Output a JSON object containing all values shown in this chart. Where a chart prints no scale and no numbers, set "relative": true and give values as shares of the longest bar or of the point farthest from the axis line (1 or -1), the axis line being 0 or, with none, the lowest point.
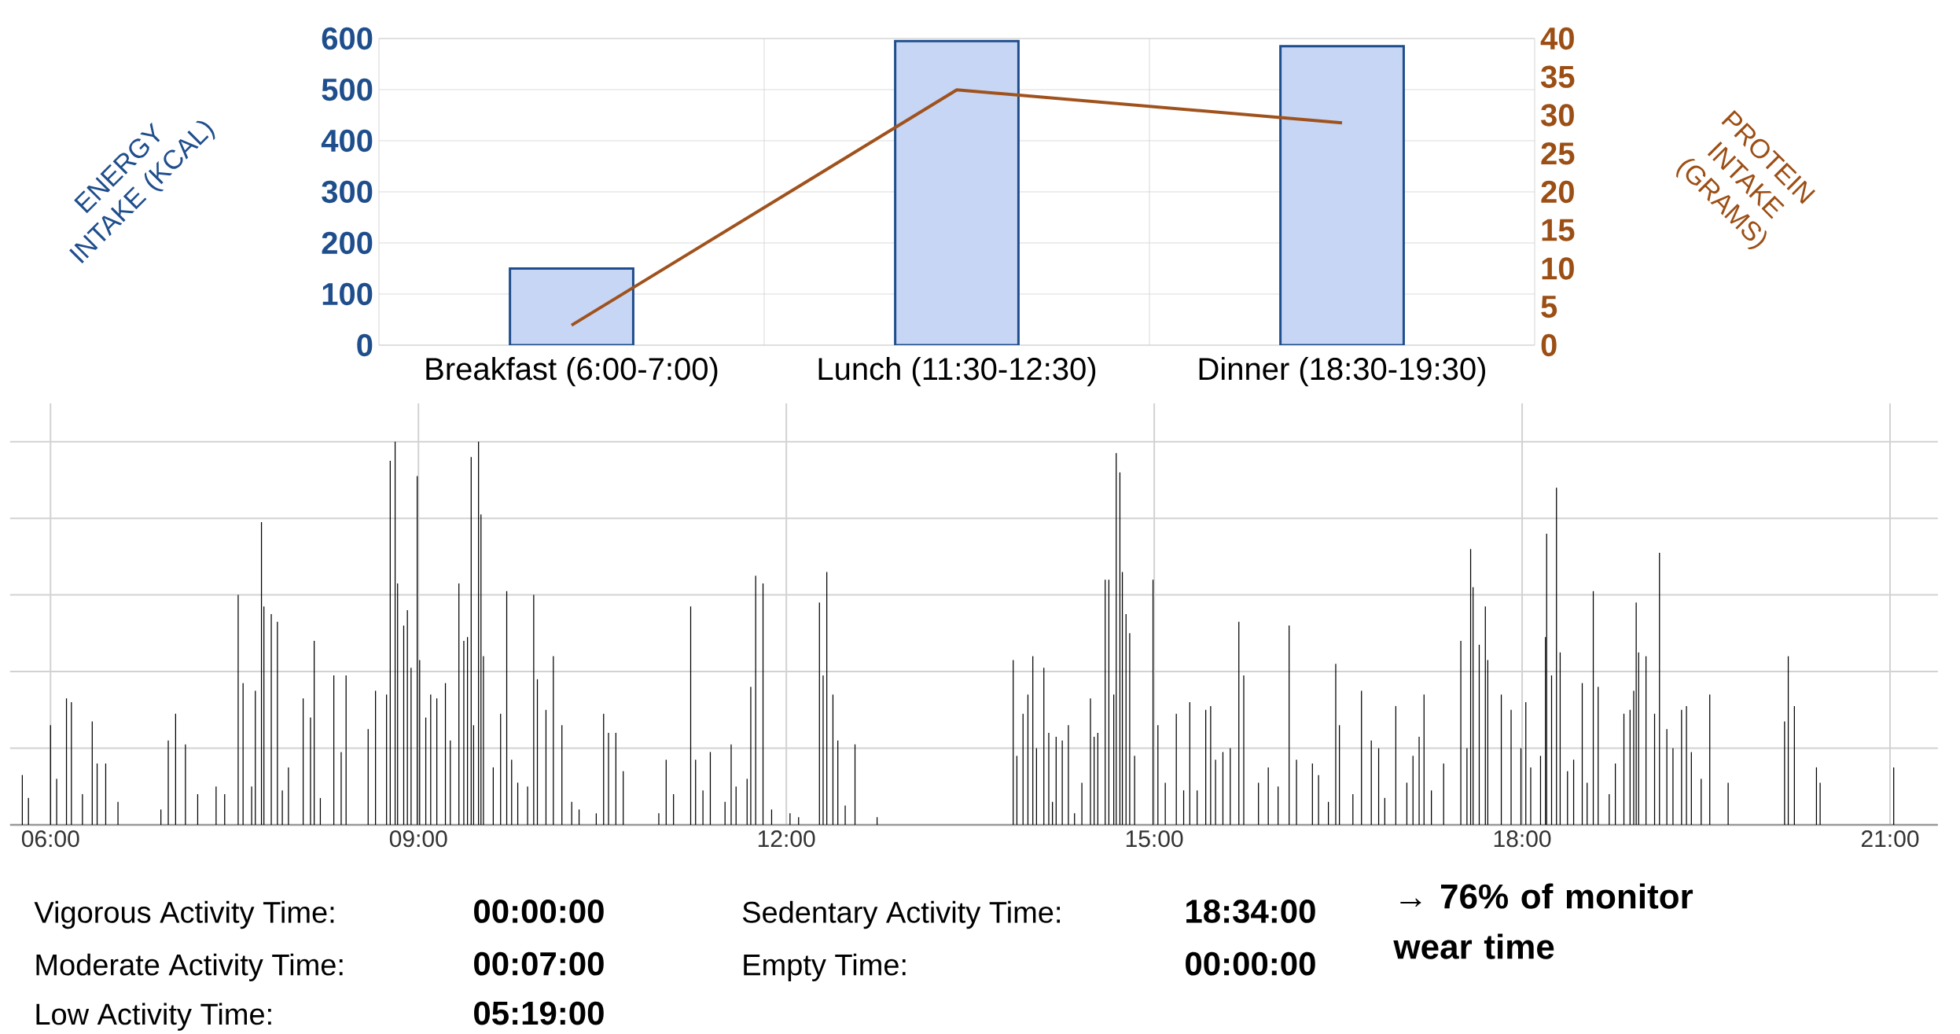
{
  "chart_data": [
    {
      "type": "bar",
      "categories": [
        "Breakfast (6:00-7:00)",
        "Lunch (11:30-12:30)",
        "Dinner (18:30-19:30)"
      ],
      "series": [
        {
          "color": "#c6d6f4",
          "values": [
            150,
            595,
            585
          ]
        },
        {
          "type": "line",
          "axis": "y2",
          "color": "#a0521d",
          "values": [
            2.6,
            33.3,
            29
          ]
        }
      ],
      "ylabel": "ENERGY INTAKE (KCAL)",
      "y2label": "PROTEIN INTAKE (GRAMS)",
      "ylim": [
        0,
        600
      ],
      "yticks": [
        0,
        100,
        200,
        300,
        400,
        500,
        600
      ],
      "y2lim": [
        0,
        40
      ],
      "y2ticks": [
        0,
        5,
        10,
        15,
        20,
        25,
        30,
        35,
        40
      ],
      "grid": true
    },
    {
      "type": "bar",
      "relative": true,
      "color": "#000000",
      "grid": true,
      "xlim": [
        5.67,
        21.39
      ],
      "xticks": [
        {
          "value": 6,
          "label": "06:00"
        },
        {
          "value": 9,
          "label": "09:00"
        },
        {
          "value": 12,
          "label": "12:00"
        },
        {
          "value": 15,
          "label": "15:00"
        },
        {
          "value": 18,
          "label": "18:00"
        },
        {
          "value": 21,
          "label": "21:00"
        }
      ],
      "x": [
        5.77,
        5.82,
        6.0,
        6.05,
        6.13,
        6.17,
        6.26,
        6.34,
        6.38,
        6.45,
        6.55,
        6.9,
        6.96,
        7.02,
        7.1,
        7.2,
        7.35,
        7.42,
        7.53,
        7.57,
        7.64,
        7.67,
        7.72,
        7.74,
        7.8,
        7.85,
        7.89,
        7.94,
        8.06,
        8.12,
        8.15,
        8.2,
        8.31,
        8.37,
        8.41,
        8.59,
        8.65,
        8.74,
        8.77,
        8.81,
        8.83,
        8.88,
        8.91,
        8.94,
        8.99,
        9.01,
        9.06,
        9.1,
        9.15,
        9.22,
        9.26,
        9.33,
        9.37,
        9.4,
        9.43,
        9.45,
        9.49,
        9.51,
        9.53,
        9.61,
        9.67,
        9.72,
        9.76,
        9.81,
        9.89,
        9.94,
        9.97,
        10.04,
        10.1,
        10.17,
        10.25,
        10.31,
        10.45,
        10.51,
        10.55,
        10.61,
        10.67,
        10.96,
        11.02,
        11.08,
        11.22,
        11.26,
        11.32,
        11.38,
        11.5,
        11.55,
        11.59,
        11.68,
        11.71,
        11.75,
        11.81,
        11.88,
        12.03,
        12.1,
        12.27,
        12.3,
        12.33,
        12.38,
        12.42,
        12.48,
        12.56,
        12.74,
        13.85,
        13.88,
        13.93,
        13.97,
        14.01,
        14.04,
        14.1,
        14.14,
        14.17,
        14.2,
        14.25,
        14.3,
        14.35,
        14.41,
        14.48,
        14.51,
        14.54,
        14.6,
        14.63,
        14.67,
        14.69,
        14.72,
        14.74,
        14.77,
        14.8,
        14.84,
        14.99,
        15.03,
        15.09,
        15.18,
        15.24,
        15.29,
        15.35,
        15.42,
        15.46,
        15.5,
        15.56,
        15.62,
        15.69,
        15.73,
        15.85,
        15.93,
        16.01,
        16.1,
        16.16,
        16.29,
        16.34,
        16.42,
        16.48,
        16.51,
        16.62,
        16.69,
        16.77,
        16.83,
        16.88,
        16.97,
        17.06,
        17.11,
        17.16,
        17.2,
        17.26,
        17.36,
        17.5,
        17.55,
        17.58,
        17.6,
        17.65,
        17.7,
        17.72,
        17.83,
        17.91,
        17.99,
        18.03,
        18.07,
        18.15,
        18.19,
        18.2,
        18.24,
        18.28,
        18.31,
        18.37,
        18.42,
        18.49,
        18.53,
        18.58,
        18.62,
        18.71,
        18.76,
        18.83,
        18.88,
        18.91,
        18.93,
        18.95,
        19.01,
        19.08,
        19.12,
        19.18,
        19.23,
        19.3,
        19.34,
        19.38,
        19.46,
        19.53,
        19.68,
        20.14,
        20.17,
        20.22,
        20.4,
        20.43,
        21.03
      ],
      "values": [
        0.13,
        0.07,
        0.26,
        0.12,
        0.33,
        0.32,
        0.08,
        0.27,
        0.16,
        0.16,
        0.06,
        0.04,
        0.22,
        0.29,
        0.21,
        0.08,
        0.1,
        0.08,
        0.6,
        0.37,
        0.1,
        0.35,
        0.79,
        0.57,
        0.55,
        0.53,
        0.09,
        0.15,
        0.33,
        0.28,
        0.48,
        0.07,
        0.39,
        0.19,
        0.39,
        0.25,
        0.35,
        0.34,
        0.95,
        1.0,
        0.63,
        0.52,
        0.56,
        0.41,
        0.91,
        0.43,
        0.28,
        0.34,
        0.33,
        0.37,
        0.22,
        0.63,
        0.48,
        0.49,
        0.96,
        0.26,
        1.0,
        0.81,
        0.44,
        0.15,
        0.29,
        0.61,
        0.17,
        0.11,
        0.1,
        0.6,
        0.38,
        0.3,
        0.44,
        0.26,
        0.06,
        0.04,
        0.03,
        0.29,
        0.24,
        0.24,
        0.14,
        0.03,
        0.17,
        0.08,
        0.57,
        0.17,
        0.09,
        0.19,
        0.06,
        0.21,
        0.1,
        0.12,
        0.36,
        0.65,
        0.63,
        0.04,
        0.03,
        0.02,
        0.58,
        0.39,
        0.66,
        0.34,
        0.22,
        0.05,
        0.21,
        0.02,
        0.43,
        0.18,
        0.29,
        0.34,
        0.44,
        0.2,
        0.41,
        0.24,
        0.06,
        0.23,
        0.22,
        0.26,
        0.03,
        0.11,
        0.33,
        0.23,
        0.24,
        0.64,
        0.64,
        0.34,
        0.97,
        0.92,
        0.66,
        0.55,
        0.5,
        0.18,
        0.64,
        0.26,
        0.11,
        0.29,
        0.09,
        0.32,
        0.09,
        0.3,
        0.31,
        0.17,
        0.19,
        0.2,
        0.53,
        0.39,
        0.11,
        0.15,
        0.1,
        0.52,
        0.17,
        0.16,
        0.13,
        0.06,
        0.42,
        0.26,
        0.08,
        0.35,
        0.22,
        0.2,
        0.07,
        0.31,
        0.11,
        0.18,
        0.23,
        0.34,
        0.09,
        0.16,
        0.48,
        0.2,
        0.72,
        0.62,
        0.47,
        0.57,
        0.43,
        0.34,
        0.3,
        0.2,
        0.32,
        0.15,
        0.18,
        0.49,
        0.76,
        0.39,
        0.88,
        0.45,
        0.14,
        0.17,
        0.37,
        0.11,
        0.61,
        0.36,
        0.08,
        0.16,
        0.29,
        0.3,
        0.35,
        0.58,
        0.45,
        0.44,
        0.29,
        0.71,
        0.25,
        0.2,
        0.3,
        0.31,
        0.19,
        0.12,
        0.34,
        0.11,
        0.27,
        0.44,
        0.31,
        0.15,
        0.11,
        0.15
      ]
    },
    {
      "type": "other",
      "annotations": [
        "Vigorous Activity Time:",
        "00:00:00",
        "Moderate Activity Time:",
        "00:07:00",
        "Low Activity Time:",
        "05:19:00",
        "Sedentary Activity Time:",
        "18:34:00",
        "Empty Time:",
        "00:00:00",
        "→ 76% of monitor wear time"
      ]
    }
  ]
}
